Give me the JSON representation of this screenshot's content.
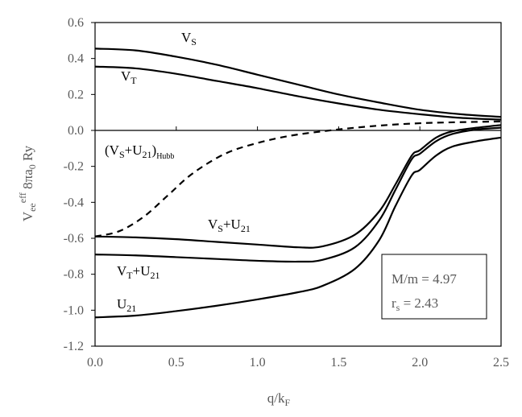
{
  "chart_data": {
    "type": "line",
    "title": "",
    "xlabel": {
      "main": "q/k",
      "sub": "F"
    },
    "ylabel": {
      "main": "V",
      "sub": "ee",
      "sup": "eff",
      "suffix": " 8πa",
      "sub2": "0",
      "unit": " Ry"
    },
    "xlim": [
      0.0,
      2.5
    ],
    "ylim": [
      -1.2,
      0.6
    ],
    "x_ticks": [
      "0.0",
      "0.5",
      "1.0",
      "1.5",
      "2.0",
      "2.5"
    ],
    "y_ticks": [
      "0.6",
      "0.4",
      "0.2",
      "0.0",
      "-0.2",
      "-0.4",
      "-0.6",
      "-0.8",
      "-1.0",
      "-1.2"
    ],
    "x_tick_values": [
      0.0,
      0.5,
      1.0,
      1.5,
      2.0,
      2.5
    ],
    "y_tick_values": [
      0.6,
      0.4,
      0.2,
      0.0,
      -0.2,
      -0.4,
      -0.6,
      -0.8,
      -1.0,
      -1.2
    ],
    "series": [
      {
        "name": "V_S",
        "style": "solid",
        "x": [
          0.0,
          0.25,
          0.5,
          0.75,
          1.0,
          1.25,
          1.5,
          1.75,
          2.0,
          2.25,
          2.5
        ],
        "y": [
          0.455,
          0.445,
          0.41,
          0.365,
          0.31,
          0.255,
          0.2,
          0.155,
          0.115,
          0.09,
          0.075
        ]
      },
      {
        "name": "V_T",
        "style": "solid",
        "x": [
          0.0,
          0.25,
          0.5,
          0.75,
          1.0,
          1.25,
          1.5,
          1.75,
          2.0,
          2.25,
          2.5
        ],
        "y": [
          0.355,
          0.345,
          0.315,
          0.275,
          0.235,
          0.19,
          0.15,
          0.115,
          0.09,
          0.07,
          0.06
        ]
      },
      {
        "name": "(V_S+U_21)_Hubb",
        "style": "dashed",
        "x": [
          0.0,
          0.15,
          0.3,
          0.45,
          0.6,
          0.8,
          1.0,
          1.2,
          1.4,
          1.6,
          1.8,
          2.0,
          2.2,
          2.5
        ],
        "y": [
          -0.59,
          -0.56,
          -0.48,
          -0.36,
          -0.24,
          -0.13,
          -0.07,
          -0.03,
          -0.005,
          0.015,
          0.03,
          0.04,
          0.045,
          0.05
        ]
      },
      {
        "name": "V_S+U_21",
        "style": "solid",
        "x": [
          0.0,
          0.25,
          0.5,
          0.75,
          1.0,
          1.25,
          1.4,
          1.6,
          1.75,
          1.85,
          1.95,
          2.0,
          2.1,
          2.2,
          2.35,
          2.5
        ],
        "y": [
          -0.59,
          -0.595,
          -0.605,
          -0.62,
          -0.635,
          -0.65,
          -0.645,
          -0.58,
          -0.45,
          -0.3,
          -0.14,
          -0.11,
          -0.04,
          -0.005,
          0.015,
          0.03
        ]
      },
      {
        "name": "V_T+U_21",
        "style": "solid",
        "x": [
          0.0,
          0.25,
          0.5,
          0.75,
          1.0,
          1.25,
          1.4,
          1.6,
          1.75,
          1.85,
          1.95,
          2.0,
          2.1,
          2.2,
          2.35,
          2.5
        ],
        "y": [
          -0.69,
          -0.695,
          -0.705,
          -0.715,
          -0.725,
          -0.73,
          -0.72,
          -0.65,
          -0.5,
          -0.33,
          -0.16,
          -0.13,
          -0.06,
          -0.02,
          0.005,
          0.015
        ]
      },
      {
        "name": "U_21",
        "style": "solid",
        "x": [
          0.0,
          0.25,
          0.5,
          0.75,
          1.0,
          1.25,
          1.4,
          1.6,
          1.75,
          1.85,
          1.95,
          2.0,
          2.1,
          2.2,
          2.35,
          2.5
        ],
        "y": [
          -1.04,
          -1.03,
          -1.005,
          -0.975,
          -0.94,
          -0.9,
          -0.865,
          -0.77,
          -0.61,
          -0.42,
          -0.25,
          -0.22,
          -0.14,
          -0.09,
          -0.06,
          -0.04
        ]
      }
    ],
    "curve_labels": [
      {
        "id": "vs",
        "main": "V",
        "sub": "S",
        "tail": "",
        "sub2": "",
        "sub3": ""
      },
      {
        "id": "vt",
        "main": "V",
        "sub": "T",
        "tail": "",
        "sub2": "",
        "sub3": ""
      },
      {
        "id": "hubb",
        "main": "(V",
        "sub": "S",
        "tail": "+U",
        "sub2": "21",
        "close": ")",
        "sub3": "Hubb"
      },
      {
        "id": "vsu",
        "main": "V",
        "sub": "S",
        "tail": "+U",
        "sub2": "21",
        "sub3": ""
      },
      {
        "id": "vtu",
        "main": "V",
        "sub": "T",
        "tail": "+U",
        "sub2": "21",
        "sub3": ""
      },
      {
        "id": "u21",
        "main": "U",
        "sub": "21",
        "tail": "",
        "sub2": "",
        "sub3": ""
      }
    ],
    "annotation": {
      "line1": "M/m = 4.97",
      "line2_main": "r",
      "line2_sub": "s",
      "line2_tail": " = 2.43"
    }
  }
}
